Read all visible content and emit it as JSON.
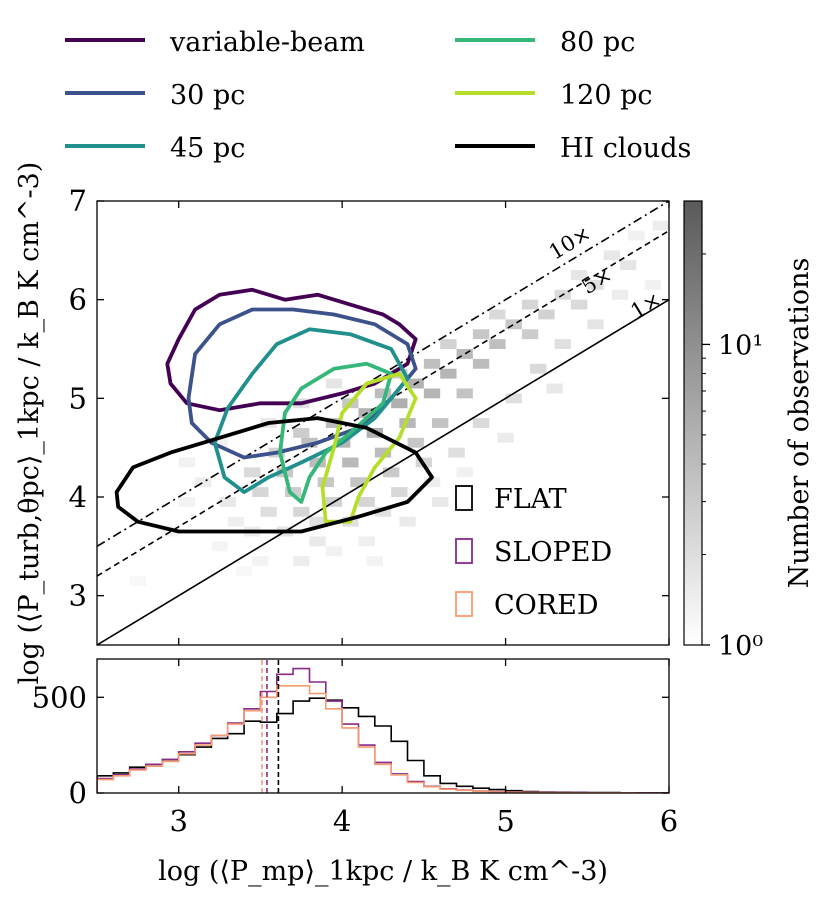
{
  "legend": {
    "items": [
      {
        "label": "variable-beam",
        "color": "#440154"
      },
      {
        "label": "30 pc",
        "color": "#3b528b"
      },
      {
        "label": "45 pc",
        "color": "#21908c"
      },
      {
        "label": "80 pc",
        "color": "#35b779"
      },
      {
        "label": "120 pc",
        "color": "#b5de2b"
      },
      {
        "label": "HI clouds",
        "color": "#000000"
      }
    ]
  },
  "chart_data": [
    {
      "type": "heatmap",
      "ylabel": "log (⟨P_turb,θpc⟩_1kpc / k_B K cm^-3)",
      "xlim": [
        2.5,
        6.0
      ],
      "ylim": [
        2.5,
        7.0
      ],
      "y_ticks": [
        "3",
        "4",
        "5",
        "6",
        "7"
      ],
      "colorbar": {
        "label": "Number of observations",
        "scale": "log",
        "range": [
          1,
          30
        ],
        "ticks": [
          {
            "value": 1,
            "label": "10⁰"
          },
          {
            "value": 10,
            "label": "10¹"
          }
        ]
      },
      "reference_lines": [
        {
          "label": "1×",
          "factor": 1,
          "style": "solid"
        },
        {
          "label": "5×",
          "factor": 5,
          "style": "dashed"
        },
        {
          "label": "10×",
          "factor": 10,
          "style": "dashdot"
        }
      ],
      "heatmap_cells": [
        [
          2.75,
          3.15,
          1
        ],
        [
          3.5,
          3.35,
          1.2
        ],
        [
          3.75,
          3.35,
          1.5
        ],
        [
          3.95,
          3.45,
          1.3
        ],
        [
          4.15,
          3.55,
          1.4
        ],
        [
          3.25,
          3.5,
          1.1
        ],
        [
          3.45,
          3.65,
          1.5
        ],
        [
          3.65,
          3.65,
          2
        ],
        [
          3.85,
          3.75,
          2.5
        ],
        [
          4.05,
          3.75,
          2.4
        ],
        [
          4.25,
          3.85,
          2.2
        ],
        [
          3.35,
          3.75,
          1.4
        ],
        [
          3.55,
          3.85,
          2.6
        ],
        [
          3.75,
          3.85,
          3.5
        ],
        [
          3.95,
          3.95,
          4
        ],
        [
          4.15,
          3.95,
          3.6
        ],
        [
          4.35,
          4.05,
          3.2
        ],
        [
          3.3,
          3.95,
          1.8
        ],
        [
          3.5,
          4.05,
          3.5
        ],
        [
          3.7,
          4.05,
          5
        ],
        [
          3.9,
          4.15,
          6
        ],
        [
          4.1,
          4.15,
          6.5
        ],
        [
          4.3,
          4.25,
          5.5
        ],
        [
          4.5,
          4.35,
          3.5
        ],
        [
          3.45,
          4.25,
          3
        ],
        [
          3.65,
          4.25,
          6
        ],
        [
          3.85,
          4.35,
          9
        ],
        [
          4.05,
          4.35,
          10
        ],
        [
          4.25,
          4.45,
          9
        ],
        [
          4.45,
          4.55,
          6
        ],
        [
          3.6,
          4.45,
          4
        ],
        [
          3.8,
          4.55,
          8
        ],
        [
          4.0,
          4.55,
          12
        ],
        [
          4.2,
          4.65,
          14
        ],
        [
          4.4,
          4.75,
          11
        ],
        [
          4.6,
          4.75,
          7
        ],
        [
          3.75,
          4.65,
          5
        ],
        [
          3.95,
          4.75,
          9
        ],
        [
          4.15,
          4.85,
          13
        ],
        [
          4.35,
          4.95,
          15
        ],
        [
          4.55,
          5.05,
          12
        ],
        [
          4.75,
          5.05,
          7
        ],
        [
          4.05,
          4.95,
          6
        ],
        [
          4.25,
          5.05,
          9
        ],
        [
          4.45,
          5.15,
          13
        ],
        [
          4.65,
          5.25,
          12
        ],
        [
          4.85,
          5.35,
          9
        ],
        [
          4.35,
          5.25,
          5
        ],
        [
          4.55,
          5.35,
          8
        ],
        [
          4.75,
          5.45,
          10
        ],
        [
          4.95,
          5.55,
          8
        ],
        [
          5.15,
          5.65,
          5
        ],
        [
          4.65,
          5.55,
          4
        ],
        [
          4.85,
          5.65,
          6
        ],
        [
          5.05,
          5.75,
          6
        ],
        [
          5.25,
          5.85,
          4
        ],
        [
          5.45,
          5.95,
          3
        ],
        [
          4.95,
          5.85,
          3
        ],
        [
          5.15,
          5.95,
          3.5
        ],
        [
          5.35,
          6.05,
          3
        ],
        [
          5.55,
          6.15,
          2.5
        ],
        [
          5.75,
          6.35,
          2
        ],
        [
          5.45,
          6.25,
          2
        ],
        [
          5.65,
          6.45,
          1.8
        ],
        [
          5.95,
          6.75,
          1.5
        ],
        [
          5.8,
          6.65,
          1.3
        ],
        [
          3.15,
          4.15,
          1.5
        ],
        [
          3.05,
          3.95,
          1.2
        ],
        [
          4.55,
          4.15,
          1.5
        ],
        [
          4.7,
          4.45,
          2.5
        ],
        [
          4.85,
          4.75,
          3
        ],
        [
          5.05,
          5.0,
          2.5
        ],
        [
          4.75,
          4.25,
          1.3
        ],
        [
          5.2,
          5.3,
          3
        ],
        [
          5.35,
          5.55,
          2.4
        ],
        [
          5.55,
          5.75,
          2
        ],
        [
          3.4,
          3.25,
          1
        ],
        [
          4.2,
          3.35,
          1.2
        ],
        [
          4.4,
          3.75,
          1.6
        ],
        [
          2.95,
          3.65,
          1.2
        ],
        [
          3.85,
          3.55,
          1.7
        ],
        [
          4.6,
          3.95,
          1.8
        ],
        [
          5.0,
          4.6,
          1.6
        ],
        [
          5.3,
          5.1,
          1.8
        ],
        [
          3.05,
          4.35,
          1.3
        ],
        [
          3.25,
          4.55,
          1.2
        ],
        [
          5.7,
          6.05,
          1.5
        ],
        [
          5.9,
          6.15,
          1.3
        ],
        [
          3.95,
          5.15,
          2
        ],
        [
          3.75,
          4.95,
          2.5
        ],
        [
          3.55,
          4.75,
          1.8
        ]
      ],
      "contours": [
        {
          "series": "variable-beam",
          "points": [
            [
              2.93,
              5.35
            ],
            [
              3.0,
              5.6
            ],
            [
              3.1,
              5.9
            ],
            [
              3.25,
              6.05
            ],
            [
              3.45,
              6.1
            ],
            [
              3.65,
              6.0
            ],
            [
              3.85,
              6.05
            ],
            [
              4.05,
              5.95
            ],
            [
              4.25,
              5.85
            ],
            [
              4.35,
              5.75
            ],
            [
              4.45,
              5.6
            ],
            [
              4.4,
              5.35
            ],
            [
              4.2,
              5.15
            ],
            [
              4.0,
              5.05
            ],
            [
              3.75,
              4.95
            ],
            [
              3.5,
              4.95
            ],
            [
              3.25,
              4.88
            ],
            [
              3.05,
              4.95
            ],
            [
              2.95,
              5.15
            ]
          ]
        },
        {
          "series": "30 pc",
          "points": [
            [
              3.06,
              5.0
            ],
            [
              3.1,
              5.45
            ],
            [
              3.25,
              5.75
            ],
            [
              3.45,
              5.9
            ],
            [
              3.7,
              5.9
            ],
            [
              3.95,
              5.85
            ],
            [
              4.2,
              5.75
            ],
            [
              4.4,
              5.55
            ],
            [
              4.45,
              5.3
            ],
            [
              4.3,
              5.0
            ],
            [
              4.1,
              4.7
            ],
            [
              3.85,
              4.55
            ],
            [
              3.6,
              4.45
            ],
            [
              3.4,
              4.4
            ],
            [
              3.2,
              4.55
            ],
            [
              3.08,
              4.75
            ]
          ]
        },
        {
          "series": "45 pc",
          "points": [
            [
              3.28,
              4.2
            ],
            [
              3.22,
              4.55
            ],
            [
              3.3,
              4.9
            ],
            [
              3.45,
              5.25
            ],
            [
              3.6,
              5.55
            ],
            [
              3.8,
              5.7
            ],
            [
              4.05,
              5.65
            ],
            [
              4.3,
              5.5
            ],
            [
              4.4,
              5.2
            ],
            [
              4.2,
              4.8
            ],
            [
              4.0,
              4.55
            ],
            [
              3.75,
              4.35
            ],
            [
              3.55,
              4.2
            ],
            [
              3.4,
              4.05
            ]
          ]
        },
        {
          "series": "80 pc",
          "points": [
            [
              3.68,
              4.05
            ],
            [
              3.62,
              4.45
            ],
            [
              3.65,
              4.85
            ],
            [
              3.75,
              5.1
            ],
            [
              3.95,
              5.3
            ],
            [
              4.15,
              5.35
            ],
            [
              4.3,
              5.25
            ],
            [
              4.25,
              4.95
            ],
            [
              4.05,
              4.65
            ],
            [
              3.9,
              4.45
            ],
            [
              3.8,
              4.2
            ],
            [
              3.75,
              3.95
            ]
          ]
        },
        {
          "series": "120 pc",
          "points": [
            [
              3.9,
              3.75
            ],
            [
              3.88,
              4.1
            ],
            [
              3.95,
              4.5
            ],
            [
              4.0,
              4.85
            ],
            [
              4.15,
              5.15
            ],
            [
              4.35,
              5.25
            ],
            [
              4.45,
              5.0
            ],
            [
              4.35,
              4.6
            ],
            [
              4.2,
              4.3
            ],
            [
              4.1,
              4.0
            ],
            [
              4.05,
              3.75
            ]
          ]
        },
        {
          "series": "HI clouds",
          "points": [
            [
              2.62,
              4.05
            ],
            [
              2.72,
              4.3
            ],
            [
              2.95,
              4.45
            ],
            [
              3.25,
              4.6
            ],
            [
              3.55,
              4.75
            ],
            [
              3.85,
              4.8
            ],
            [
              4.15,
              4.7
            ],
            [
              4.45,
              4.45
            ],
            [
              4.55,
              4.2
            ],
            [
              4.4,
              3.95
            ],
            [
              4.1,
              3.8
            ],
            [
              3.75,
              3.65
            ],
            [
              3.35,
              3.65
            ],
            [
              3.0,
              3.65
            ],
            [
              2.75,
              3.75
            ],
            [
              2.63,
              3.9
            ]
          ]
        }
      ],
      "legend2": [
        {
          "label": "FLAT",
          "color": "#000000"
        },
        {
          "label": "SLOPED",
          "color": "#882a8a"
        },
        {
          "label": "CORED",
          "color": "#f79a6e"
        }
      ]
    },
    {
      "type": "line",
      "xlabel": "log (⟨P_mp⟩_1kpc / k_B K cm^-3)",
      "xlim": [
        2.5,
        6.0
      ],
      "ylim": [
        0,
        700
      ],
      "x_ticks": [
        "3",
        "4",
        "5",
        "6"
      ],
      "y_ticks": [
        "0",
        "500"
      ],
      "bin_edges": [
        2.5,
        2.6,
        2.7,
        2.8,
        2.9,
        3.0,
        3.1,
        3.2,
        3.3,
        3.4,
        3.5,
        3.6,
        3.7,
        3.8,
        3.9,
        4.0,
        4.1,
        4.2,
        4.3,
        4.4,
        4.5,
        4.6,
        4.7,
        4.8,
        4.9,
        5.0,
        5.1,
        5.2,
        5.3,
        5.4,
        5.5,
        5.6,
        5.7,
        5.8,
        5.9,
        6.0
      ],
      "series": [
        {
          "name": "FLAT",
          "color": "#000000",
          "median": 3.61,
          "values": [
            90,
            105,
            135,
            150,
            175,
            200,
            240,
            285,
            310,
            375,
            370,
            415,
            480,
            495,
            485,
            445,
            400,
            350,
            270,
            170,
            90,
            50,
            35,
            25,
            18,
            12,
            8,
            5,
            4,
            3,
            2,
            2,
            1,
            1,
            1
          ]
        },
        {
          "name": "SLOPED",
          "color": "#882a8a",
          "median": 3.54,
          "values": [
            75,
            95,
            125,
            150,
            175,
            215,
            260,
            300,
            365,
            440,
            530,
            620,
            650,
            580,
            480,
            360,
            250,
            160,
            100,
            60,
            35,
            22,
            15,
            10,
            7,
            5,
            4,
            3,
            2,
            2,
            1,
            1,
            1,
            1,
            0
          ]
        },
        {
          "name": "CORED",
          "color": "#f79a6e",
          "median": 3.51,
          "values": [
            70,
            90,
            120,
            140,
            165,
            205,
            250,
            300,
            360,
            430,
            500,
            560,
            560,
            520,
            440,
            340,
            240,
            150,
            95,
            55,
            33,
            20,
            14,
            9,
            6,
            4,
            3,
            2,
            2,
            1,
            1,
            1,
            1,
            0,
            0
          ]
        }
      ]
    }
  ],
  "heatmap_color": "#808080"
}
